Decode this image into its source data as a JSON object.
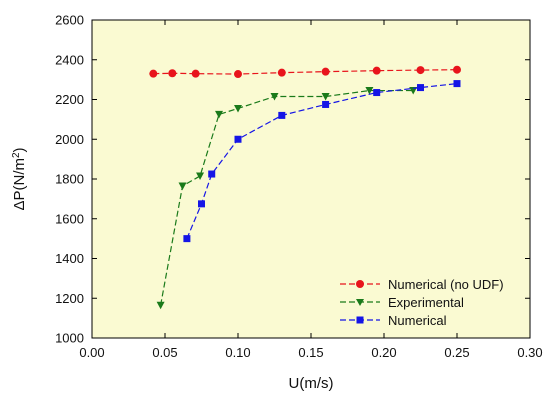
{
  "chart_data": {
    "type": "line",
    "title": "",
    "xlabel": "U(m/s)",
    "ylabel": "ΔP(N/m",
    "ylabel_sup": "2",
    "ylabel_close": ")",
    "xlim": [
      0,
      0.3
    ],
    "ylim": [
      1000,
      2600
    ],
    "x_ticks": [
      0,
      0.05,
      0.1,
      0.15,
      0.2,
      0.25,
      0.3
    ],
    "x_tick_labels": [
      "0.00",
      "0.05",
      "0.10",
      "0.15",
      "0.20",
      "0.25",
      "0.30"
    ],
    "y_ticks": [
      1000,
      1200,
      1400,
      1600,
      1800,
      2000,
      2200,
      2400,
      2600
    ],
    "y_tick_labels": [
      "1000",
      "1200",
      "1400",
      "1600",
      "1800",
      "2000",
      "2200",
      "2400",
      "2600"
    ],
    "grid": false,
    "background_color": "#FAFAD2",
    "legend_position": "bottom-right",
    "series": [
      {
        "name": "Numerical (no UDF)",
        "color": "#E8141C",
        "marker": "circle",
        "line_style": "dashed",
        "x": [
          0.042,
          0.055,
          0.071,
          0.1,
          0.13,
          0.16,
          0.195,
          0.225,
          0.25
        ],
        "y": [
          2330,
          2332,
          2330,
          2328,
          2335,
          2340,
          2345,
          2348,
          2350
        ]
      },
      {
        "name": "Experimental",
        "color": "#1A7A1A",
        "marker": "triangle-down",
        "line_style": "dashed",
        "x": [
          0.047,
          0.062,
          0.074,
          0.087,
          0.1,
          0.125,
          0.16,
          0.19,
          0.22
        ],
        "y": [
          1165,
          1765,
          1815,
          2125,
          2155,
          2215,
          2215,
          2245,
          2245
        ]
      },
      {
        "name": "Numerical",
        "color": "#1515E6",
        "marker": "square",
        "line_style": "dashed",
        "x": [
          0.065,
          0.075,
          0.082,
          0.1,
          0.13,
          0.16,
          0.195,
          0.225,
          0.25
        ],
        "y": [
          1500,
          1675,
          1825,
          2000,
          2120,
          2175,
          2235,
          2260,
          2280
        ]
      }
    ]
  }
}
